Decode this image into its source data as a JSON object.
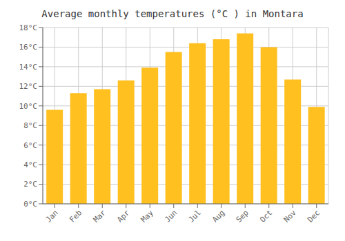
{
  "chart_data": {
    "type": "bar",
    "title": "Average monthly temperatures (°C ) in Montara",
    "categories": [
      "Jan",
      "Feb",
      "Mar",
      "Apr",
      "May",
      "Jun",
      "Jul",
      "Aug",
      "Sep",
      "Oct",
      "Nov",
      "Dec"
    ],
    "values": [
      9.6,
      11.3,
      11.7,
      12.6,
      13.9,
      15.5,
      16.4,
      16.8,
      17.4,
      16.0,
      12.7,
      9.9
    ],
    "color": "#FFC020",
    "ylim": [
      0,
      18
    ],
    "yticks": [
      {
        "value": 0,
        "label": "0°C"
      },
      {
        "value": 2,
        "label": "2°C"
      },
      {
        "value": 4,
        "label": "4°C"
      },
      {
        "value": 6,
        "label": "6°C"
      },
      {
        "value": 8,
        "label": "8°C"
      },
      {
        "value": 10,
        "label": "10°C"
      },
      {
        "value": 12,
        "label": "12°C"
      },
      {
        "value": 14,
        "label": "14°C"
      },
      {
        "value": 16,
        "label": "16°C"
      },
      {
        "value": 18,
        "label": "18°C"
      }
    ],
    "grid": true
  }
}
